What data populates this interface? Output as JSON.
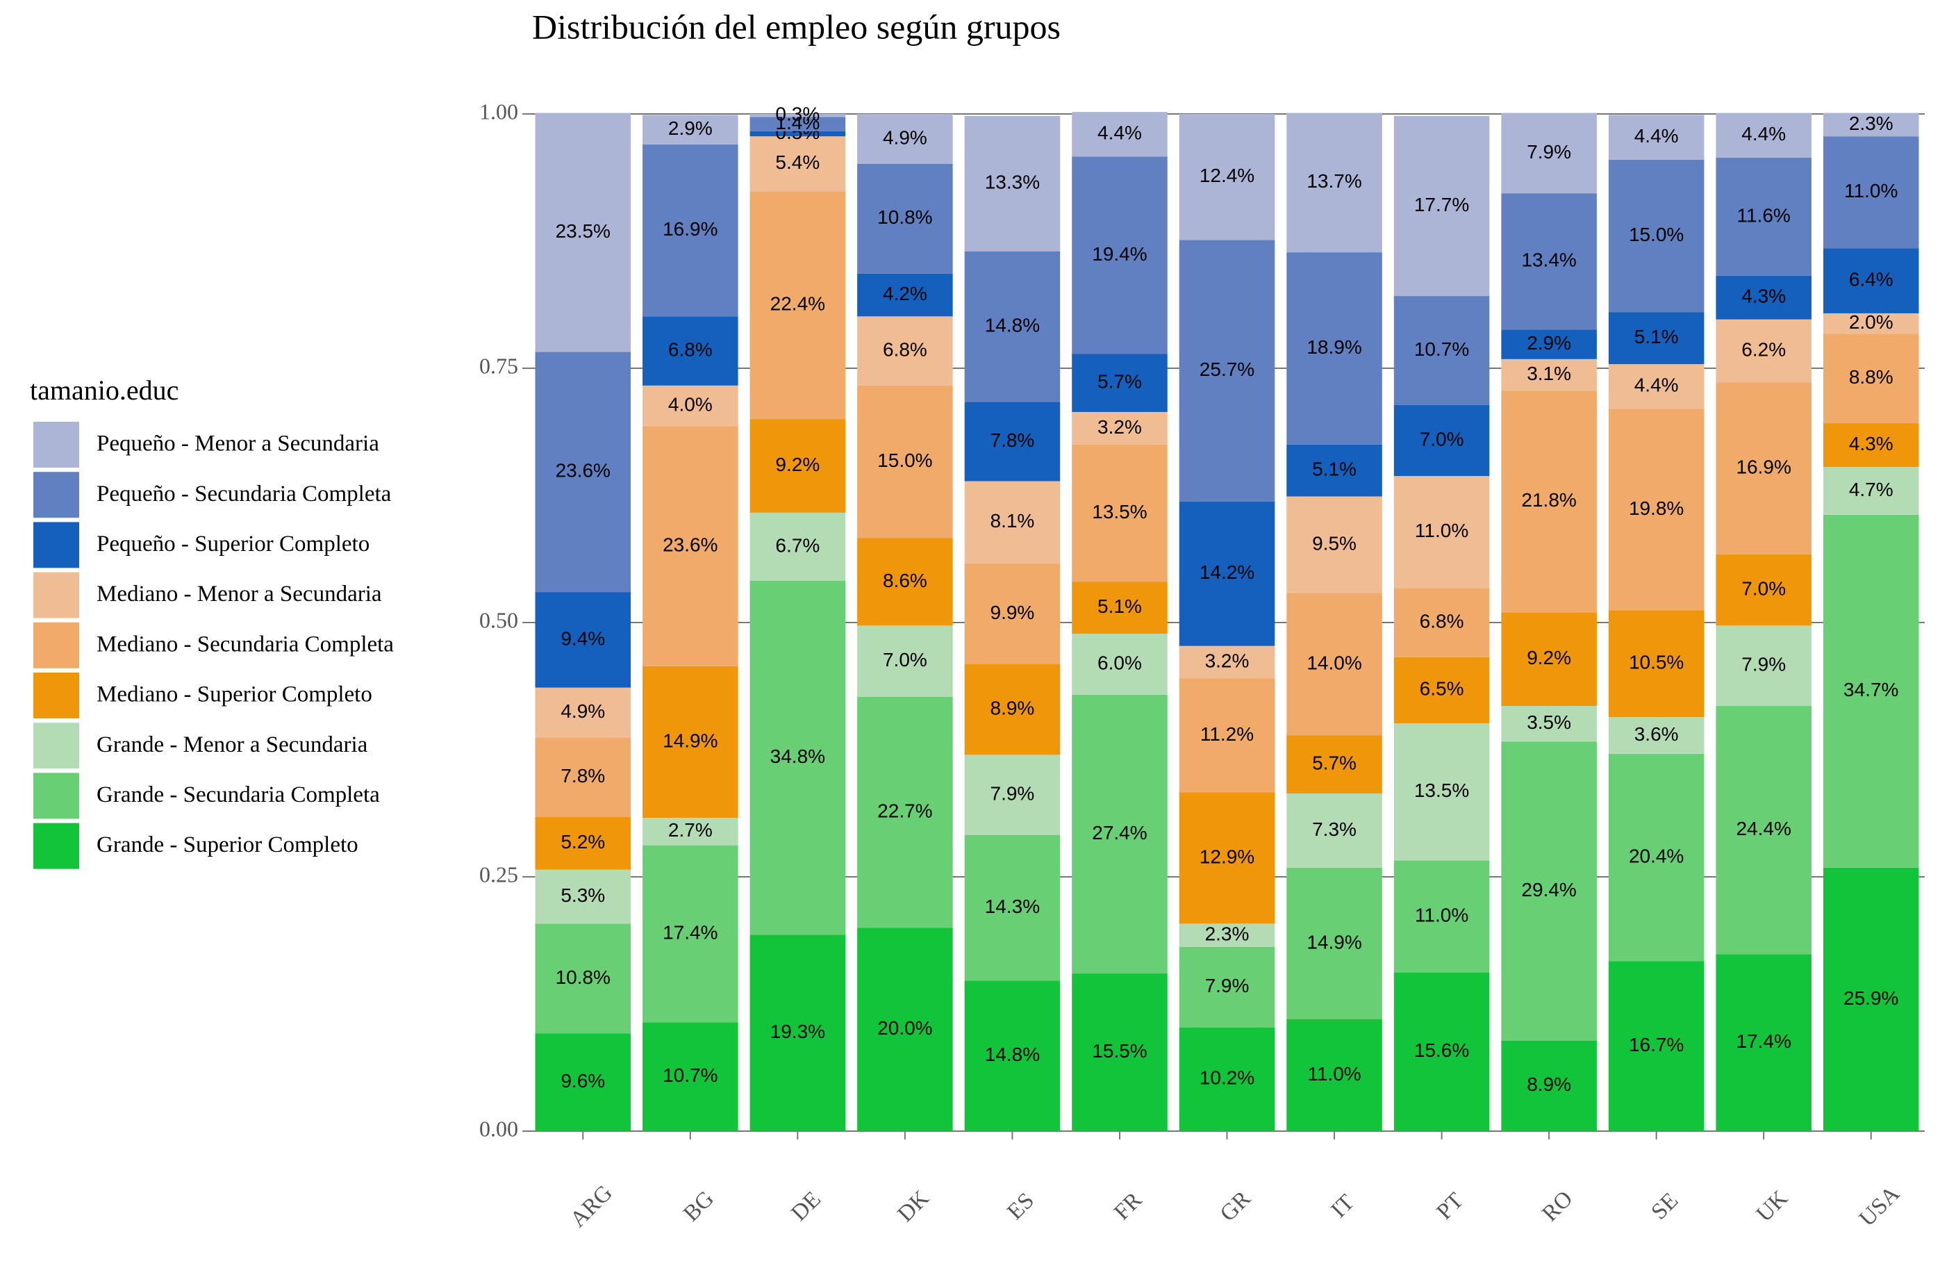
{
  "chart_data": {
    "type": "stacked_bar",
    "title": "Distribución del empleo según grupos",
    "legend_title": "tamanio.educ",
    "legend_position": "left",
    "categories": [
      "ARG",
      "BG",
      "DE",
      "DK",
      "ES",
      "FR",
      "GR",
      "IT",
      "PT",
      "RO",
      "SE",
      "UK",
      "USA"
    ],
    "ylim": [
      0,
      1
    ],
    "yticks": [
      {
        "value": 0,
        "label": "0.00"
      },
      0.25,
      {
        "value": 0.5,
        "label": "0.50"
      },
      0.75,
      {
        "value": 1,
        "label": "1.00"
      }
    ],
    "grid": true,
    "series": [
      {
        "name": "Pequeño - Menor a Secundaria",
        "color": "#adb5d6",
        "values": [
          0.235,
          0.029,
          0.003,
          0.049,
          0.133,
          0.044,
          0.124,
          0.137,
          0.177,
          0.079,
          0.044,
          0.044,
          0.023
        ],
        "value_labels": [
          "23.5%",
          "2.9%",
          "0.3%",
          "4.9%",
          "13.3%",
          "4.4%",
          "12.4%",
          "13.7%",
          "17.7%",
          "7.9%",
          "4.4%",
          "4.4%",
          "2.3%"
        ]
      },
      {
        "name": "Pequeño - Secundaria Completa",
        "color": "#6180c2",
        "values": [
          0.236,
          0.169,
          0.014,
          0.108,
          0.148,
          0.194,
          0.257,
          0.189,
          0.107,
          0.134,
          0.15,
          0.116,
          0.11
        ],
        "value_labels": [
          "23.6%",
          "16.9%",
          "1.4%",
          "10.8%",
          "14.8%",
          "19.4%",
          "25.7%",
          "18.9%",
          "10.7%",
          "13.4%",
          "15.0%",
          "11.6%",
          "11.0%"
        ]
      },
      {
        "name": "Pequeño - Superior Completo",
        "color": "#1560bd",
        "values": [
          0.094,
          0.068,
          0.005,
          0.042,
          0.078,
          0.057,
          0.142,
          0.051,
          0.07,
          0.029,
          0.051,
          0.043,
          0.064
        ],
        "value_labels": [
          "9.4%",
          "6.8%",
          "0.5%",
          "4.2%",
          "7.8%",
          "5.7%",
          "14.2%",
          "5.1%",
          "7.0%",
          "2.9%",
          "5.1%",
          "4.3%",
          "6.4%"
        ]
      },
      {
        "name": "Mediano - Menor a Secundaria",
        "color": "#f0bc94",
        "values": [
          0.049,
          0.04,
          0.054,
          0.068,
          0.081,
          0.032,
          0.032,
          0.095,
          0.11,
          0.031,
          0.044,
          0.062,
          0.02
        ],
        "value_labels": [
          "4.9%",
          "4.0%",
          "5.4%",
          "6.8%",
          "8.1%",
          "3.2%",
          "3.2%",
          "9.5%",
          "11.0%",
          "3.1%",
          "4.4%",
          "6.2%",
          "2.0%"
        ]
      },
      {
        "name": "Mediano - Secundaria Completa",
        "color": "#f0aa6a",
        "values": [
          0.078,
          0.236,
          0.224,
          0.15,
          0.099,
          0.135,
          0.112,
          0.14,
          0.068,
          0.218,
          0.198,
          0.169,
          0.088
        ],
        "value_labels": [
          "7.8%",
          "23.6%",
          "22.4%",
          "15.0%",
          "9.9%",
          "13.5%",
          "11.2%",
          "14.0%",
          "6.8%",
          "21.8%",
          "19.8%",
          "16.9%",
          "8.8%"
        ]
      },
      {
        "name": "Mediano - Superior Completo",
        "color": "#f0960a",
        "values": [
          0.052,
          0.149,
          0.092,
          0.086,
          0.089,
          0.051,
          0.129,
          0.057,
          0.065,
          0.092,
          0.105,
          0.07,
          0.043
        ],
        "value_labels": [
          "5.2%",
          "14.9%",
          "9.2%",
          "8.6%",
          "8.9%",
          "5.1%",
          "12.9%",
          "5.7%",
          "6.5%",
          "9.2%",
          "10.5%",
          "7.0%",
          "4.3%"
        ]
      },
      {
        "name": "Grande - Menor a Secundaria",
        "color": "#b3dcb5",
        "values": [
          0.053,
          0.027,
          0.067,
          0.07,
          0.079,
          0.06,
          0.023,
          0.073,
          0.135,
          0.035,
          0.036,
          0.079,
          0.047
        ],
        "value_labels": [
          "5.3%",
          "2.7%",
          "6.7%",
          "7.0%",
          "7.9%",
          "6.0%",
          "2.3%",
          "7.3%",
          "13.5%",
          "3.5%",
          "3.6%",
          "7.9%",
          "4.7%"
        ]
      },
      {
        "name": "Grande - Secundaria Completa",
        "color": "#68cf74",
        "values": [
          0.108,
          0.174,
          0.348,
          0.227,
          0.143,
          0.274,
          0.079,
          0.149,
          0.11,
          0.294,
          0.204,
          0.244,
          0.347
        ],
        "value_labels": [
          "10.8%",
          "17.4%",
          "34.8%",
          "22.7%",
          "14.3%",
          "27.4%",
          "7.9%",
          "14.9%",
          "11.0%",
          "29.4%",
          "20.4%",
          "24.4%",
          "34.7%"
        ]
      },
      {
        "name": "Grande - Superior Completo",
        "color": "#12c43a",
        "values": [
          0.096,
          0.107,
          0.193,
          0.2,
          0.148,
          0.155,
          0.102,
          0.11,
          0.156,
          0.089,
          0.167,
          0.174,
          0.259
        ],
        "value_labels": [
          "9.6%",
          "10.7%",
          "19.3%",
          "20.0%",
          "14.8%",
          "15.5%",
          "10.2%",
          "11.0%",
          "15.6%",
          "8.9%",
          "16.7%",
          "17.4%",
          "25.9%"
        ]
      }
    ]
  }
}
